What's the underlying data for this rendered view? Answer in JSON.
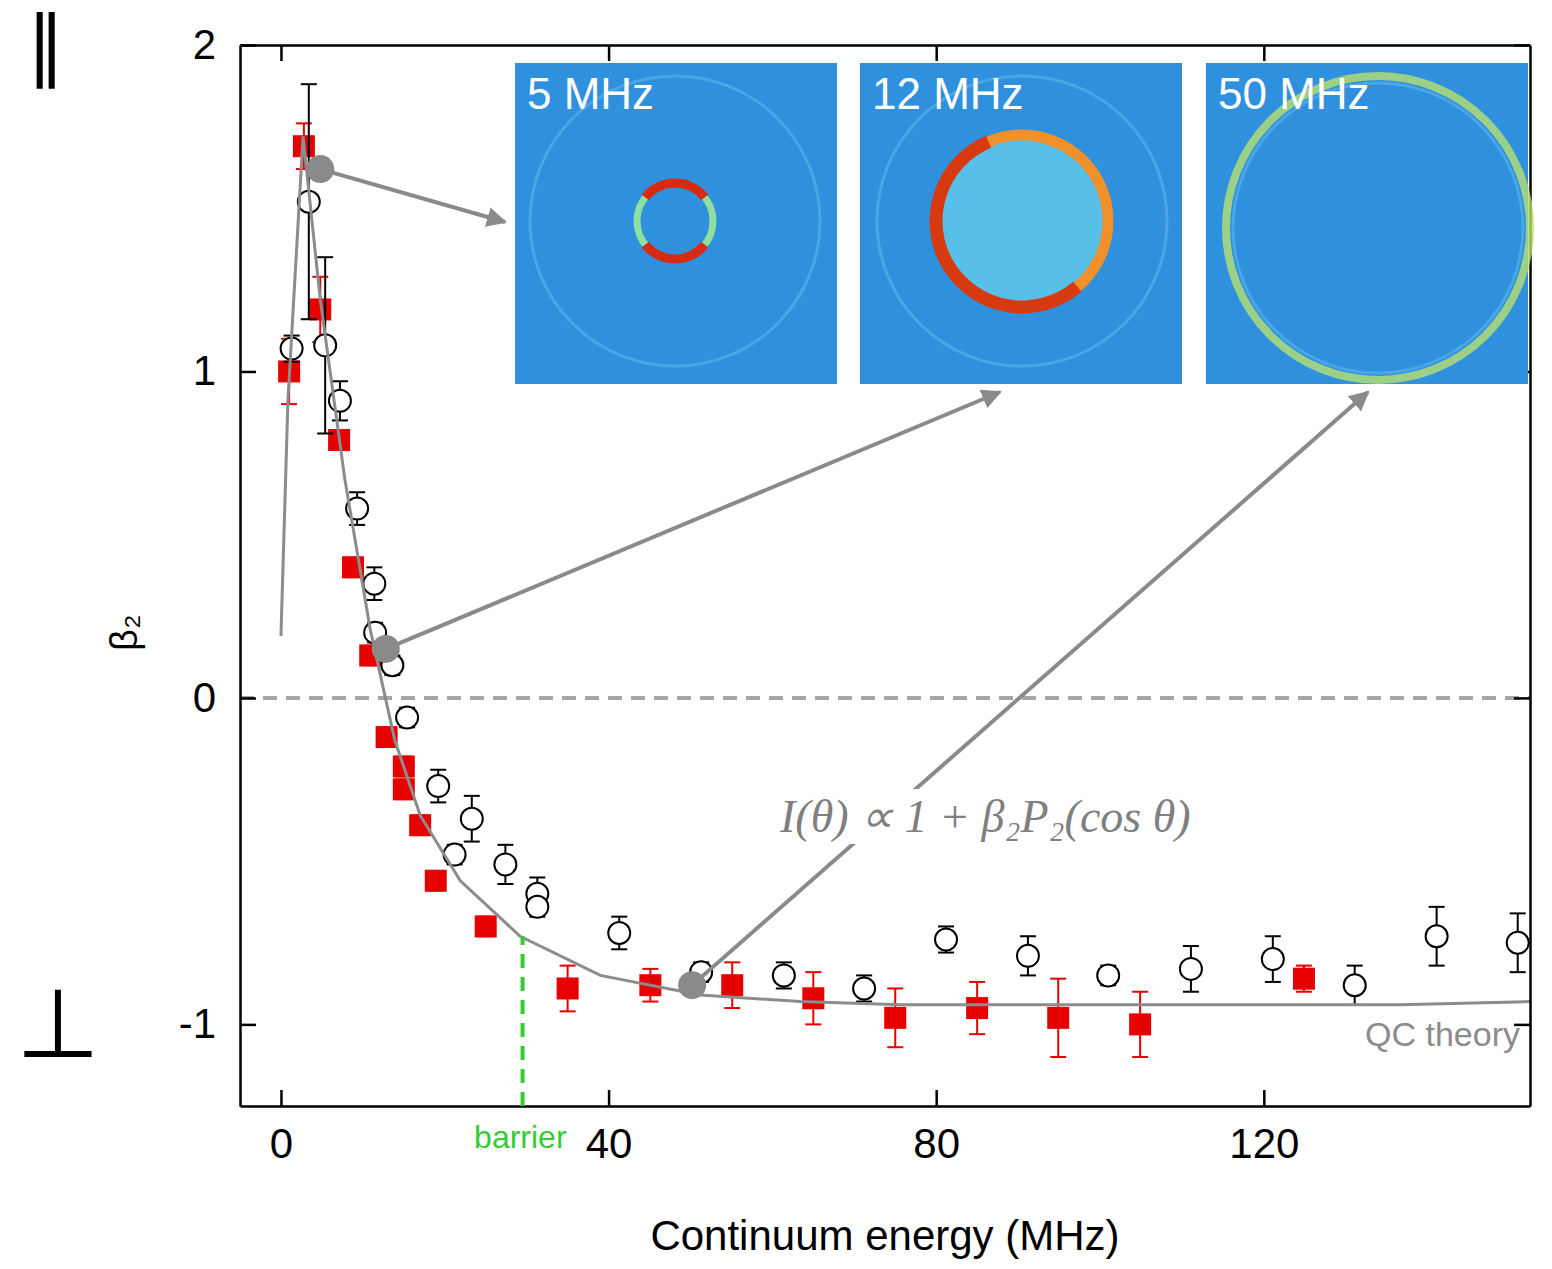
{
  "chart_data": {
    "type": "scatter",
    "xlabel": "Continuum energy (MHz)",
    "ylabel": "β₂",
    "xlim": [
      -5,
      152.5
    ],
    "ylim": [
      -1.25,
      2
    ],
    "xticks": [
      0,
      40,
      80,
      120
    ],
    "yticks": [
      -1,
      0,
      1,
      2
    ],
    "grid": false,
    "series": [
      {
        "color": "#e60000",
        "marker": "square",
        "x": [
          1,
          2.8,
          4.8,
          7.1,
          8.8,
          10.9,
          12.9,
          15,
          15,
          17,
          18.9,
          25,
          35,
          45.1,
          55.1,
          65,
          75,
          85,
          94.9,
          104.9,
          124.9
        ],
        "values": [
          1.0,
          1.69,
          1.19,
          0.79,
          0.4,
          0.13,
          -0.12,
          -0.21,
          -0.28,
          -0.39,
          -0.56,
          -0.7,
          -0.89,
          -0.88,
          -0.88,
          -0.92,
          -0.98,
          -0.95,
          -0.98,
          -1.0,
          -0.86
        ],
        "errors": [
          0.1,
          0.07,
          0.1,
          0.03,
          0.03,
          0.03,
          0.03,
          0.03,
          0.03,
          0.03,
          0.03,
          0.03,
          0.07,
          0.05,
          0.07,
          0.08,
          0.09,
          0.08,
          0.12,
          0.1,
          0.04
        ]
      },
      {
        "color": "#000000",
        "marker": "open-circle",
        "x": [
          1.3,
          3.4,
          5.4,
          7.2,
          9.3,
          11.4,
          11.5,
          13.6,
          15.4,
          19.2,
          21.2,
          23.3,
          27.4,
          31.3,
          31.3,
          41.3,
          51.3,
          61.4,
          71.2,
          81.2,
          91.2,
          101,
          111.1,
          121.1,
          131.1,
          141.1,
          151
        ],
        "values": [
          1.07,
          1.52,
          1.08,
          0.91,
          0.58,
          0.35,
          0.2,
          0.1,
          -0.06,
          -0.27,
          -0.48,
          -0.37,
          -0.51,
          -0.6,
          -0.64,
          -0.72,
          -0.84,
          -0.85,
          -0.89,
          -0.74,
          -0.79,
          -0.85,
          -0.83,
          -0.8,
          -0.88,
          -0.73,
          -0.75
        ],
        "errors": [
          0.04,
          0.36,
          0.27,
          0.06,
          0.05,
          0.05,
          0.03,
          0.03,
          0.03,
          0.05,
          0.03,
          0.07,
          0.06,
          0.05,
          0.03,
          0.05,
          0.03,
          0.04,
          0.04,
          0.04,
          0.06,
          0.03,
          0.07,
          0.07,
          0.06,
          0.09,
          0.09
        ]
      },
      {
        "name": "QC theory",
        "type": "line",
        "color": "#8c8c8c",
        "line_style": "solid",
        "x": [
          0,
          0.85,
          2.7,
          4.8,
          7.8,
          10.9,
          13.9,
          17,
          21.9,
          29.2,
          39,
          51.2,
          63.4,
          75.6,
          87.8,
          112.2,
          136.6,
          152.5
        ],
        "values": [
          0.19,
          0.91,
          1.72,
          1.22,
          0.67,
          0.21,
          -0.13,
          -0.36,
          -0.56,
          -0.73,
          -0.85,
          -0.91,
          -0.93,
          -0.94,
          -0.94,
          -0.94,
          -0.94,
          -0.93
        ]
      }
    ],
    "reference_lines": [
      {
        "y": 0,
        "color": "#a6a6a6",
        "line_style": "dashed"
      }
    ],
    "barrier": {
      "label": "barrier",
      "x": 29.5,
      "y": -0.73,
      "color": "#33cc33",
      "line_style": "dashed"
    },
    "formula": "I(θ) ∝ 1 + β₂P₂(cos θ)",
    "axis_symbols": [
      {
        "text": "∥",
        "y": 2
      },
      {
        "text": "⊥",
        "y": -1
      }
    ],
    "insets": [
      {
        "label": "5 MHz",
        "x": 4.8,
        "y": 1.62
      },
      {
        "label": "12 MHz",
        "x": 12.8,
        "y": 0.15
      },
      {
        "label": "50 MHz",
        "x": 50.2,
        "y": -0.88
      }
    ]
  }
}
